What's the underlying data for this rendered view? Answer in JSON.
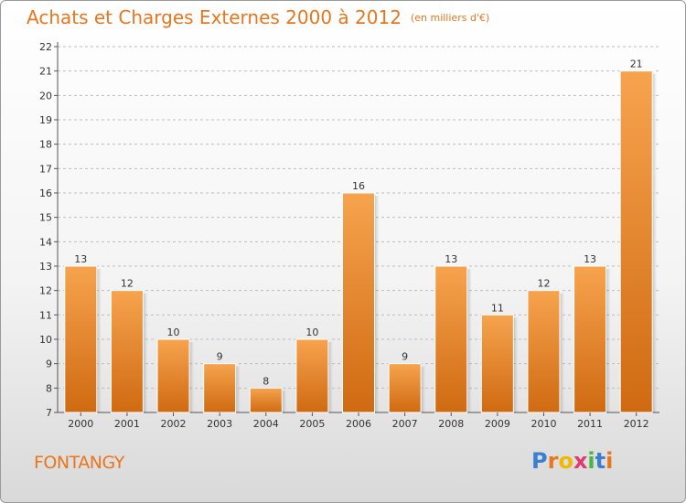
{
  "header": {
    "title": "Achats et Charges Externes 2000 à 2012",
    "unit": "(en milliers d'€)"
  },
  "footer": {
    "town": "FONTANGY",
    "logo_letters": [
      "P",
      "r",
      "o",
      "x",
      "i",
      "t",
      "i"
    ]
  },
  "colors": {
    "accent": "#e8761e",
    "bar_top": "#f7a34e",
    "bar_bottom": "#cf6a12",
    "grid": "#bdbdbd"
  },
  "chart_data": {
    "type": "bar",
    "title": "Achats et Charges Externes 2000 à 2012",
    "subtitle": "(en milliers d'€)",
    "categories": [
      "2000",
      "2001",
      "2002",
      "2003",
      "2004",
      "2005",
      "2006",
      "2007",
      "2008",
      "2009",
      "2010",
      "2011",
      "2012"
    ],
    "values": [
      13,
      12,
      10,
      9,
      8,
      10,
      16,
      9,
      13,
      11,
      12,
      13,
      21
    ],
    "ylim": [
      7,
      22
    ],
    "yticks": [
      7,
      8,
      9,
      10,
      11,
      12,
      13,
      14,
      15,
      16,
      17,
      18,
      19,
      20,
      21,
      22
    ],
    "grid": true,
    "data_labels": true
  }
}
